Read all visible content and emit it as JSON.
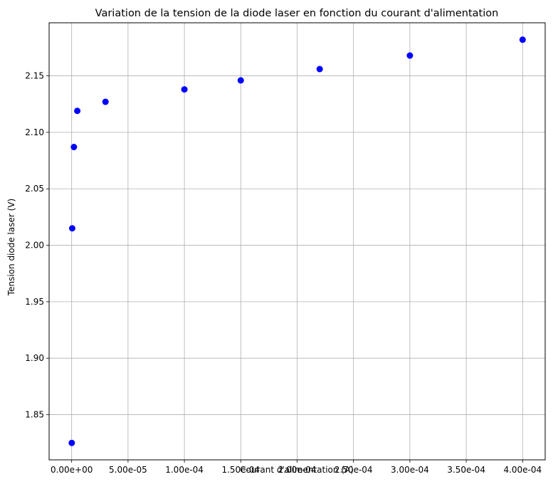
{
  "chart_data": {
    "type": "scatter",
    "title": "Variation de la tension de la diode laser en fonction du courant d'alimentation",
    "xlabel": "Courant d'alimentation (A)",
    "ylabel": "Tension diode laser (V)",
    "xlim": [
      -2e-05,
      0.00042
    ],
    "ylim": [
      1.81,
      2.197
    ],
    "grid": true,
    "x_ticks": [
      0,
      5e-05,
      0.0001,
      0.00015,
      0.0002,
      0.00025,
      0.0003,
      0.00035,
      0.0004
    ],
    "x_tick_labels": [
      "0.00e+00",
      "5.00e-05",
      "1.00e-04",
      "1.50e-04",
      "2.00e-04",
      "2.50e-04",
      "3.00e-04",
      "3.50e-04",
      "4.00e-04"
    ],
    "y_ticks": [
      1.85,
      1.9,
      1.95,
      2.0,
      2.05,
      2.1,
      2.15
    ],
    "y_tick_labels": [
      "1.85",
      "1.90",
      "1.95",
      "2.00",
      "2.05",
      "2.10",
      "2.15"
    ],
    "series": [
      {
        "color": "#0000ff",
        "marker": "circle",
        "points": [
          {
            "x": 1e-07,
            "y": 1.825
          },
          {
            "x": 5e-07,
            "y": 2.015
          },
          {
            "x": 2e-06,
            "y": 2.087
          },
          {
            "x": 5e-06,
            "y": 2.119
          },
          {
            "x": 3e-05,
            "y": 2.127
          },
          {
            "x": 0.0001,
            "y": 2.138
          },
          {
            "x": 0.00015,
            "y": 2.146
          },
          {
            "x": 0.00022,
            "y": 2.156
          },
          {
            "x": 0.0003,
            "y": 2.168
          },
          {
            "x": 0.0004,
            "y": 2.182
          }
        ]
      }
    ]
  }
}
